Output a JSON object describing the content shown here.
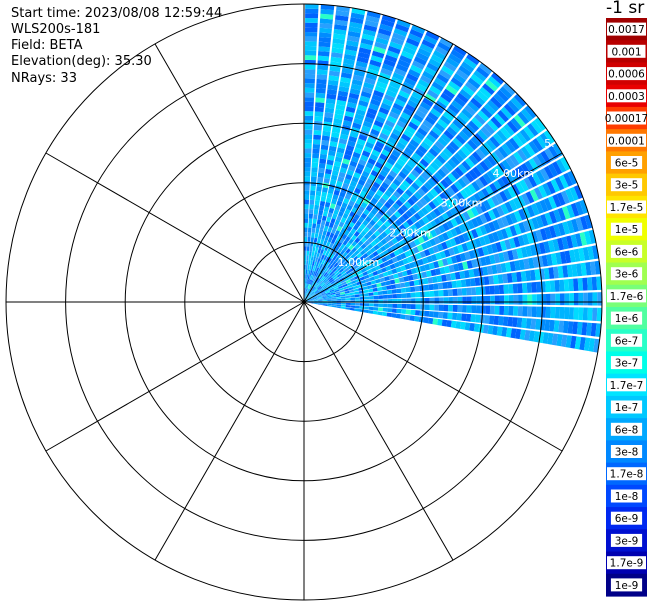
{
  "header": {
    "start_time": "Start time: 2023/08/08 12:59:44",
    "instrument": "WLS200s-181",
    "field": "Field: BETA",
    "elevation": "Elevation(deg): 35.30",
    "nrays": "NRays: 33"
  },
  "colorbar": {
    "unit_label": "-1 sr",
    "bins": [
      {
        "label": "0.0017",
        "color": "#a00000"
      },
      {
        "label": "0.001",
        "color": "#b80000"
      },
      {
        "label": "0.0006",
        "color": "#d00000"
      },
      {
        "label": "0.0003",
        "color": "#e80000"
      },
      {
        "label": "0.00017",
        "color": "#ff3c00"
      },
      {
        "label": "0.0001",
        "color": "#ff7800"
      },
      {
        "label": "6e-5",
        "color": "#ffa000"
      },
      {
        "label": "3e-5",
        "color": "#ffc800"
      },
      {
        "label": "1.7e-5",
        "color": "#ffe400"
      },
      {
        "label": "1e-5",
        "color": "#f0ff00"
      },
      {
        "label": "6e-6",
        "color": "#c8ff28"
      },
      {
        "label": "3e-6",
        "color": "#a0ff50"
      },
      {
        "label": "1.7e-6",
        "color": "#78ff78"
      },
      {
        "label": "1e-6",
        "color": "#50ffa0"
      },
      {
        "label": "6e-7",
        "color": "#28ffc8"
      },
      {
        "label": "3e-7",
        "color": "#00ffe8"
      },
      {
        "label": "1.7e-7",
        "color": "#00e4ff"
      },
      {
        "label": "1e-7",
        "color": "#00c8ff"
      },
      {
        "label": "6e-8",
        "color": "#00a8ff"
      },
      {
        "label": "3e-8",
        "color": "#0088ff"
      },
      {
        "label": "1.7e-8",
        "color": "#0068ff"
      },
      {
        "label": "1e-8",
        "color": "#0048ff"
      },
      {
        "label": "6e-9",
        "color": "#0028f0"
      },
      {
        "label": "3e-9",
        "color": "#0010d0"
      },
      {
        "label": "1.7e-9",
        "color": "#0000b0"
      },
      {
        "label": "1e-9",
        "color": "#000088"
      }
    ]
  },
  "chart_data": {
    "type": "heatmap",
    "projection": "polar-ppi",
    "field": "BETA",
    "range_rings_km": [
      1,
      2,
      3,
      4,
      5
    ],
    "range_ring_labels": [
      "1.00km",
      "2.00km",
      "3.00km",
      "4.00km",
      "5."
    ],
    "max_range_km": 5.0,
    "azimuth_spokes_deg": [
      0,
      30,
      60,
      90,
      120,
      150,
      180,
      210,
      240,
      270,
      300,
      330
    ],
    "sector_azimuth_deg": [
      0,
      100
    ],
    "nrays": 33,
    "dominant_value_range": [
      "1.7e-8",
      "1.7e-7"
    ],
    "grid": true
  }
}
